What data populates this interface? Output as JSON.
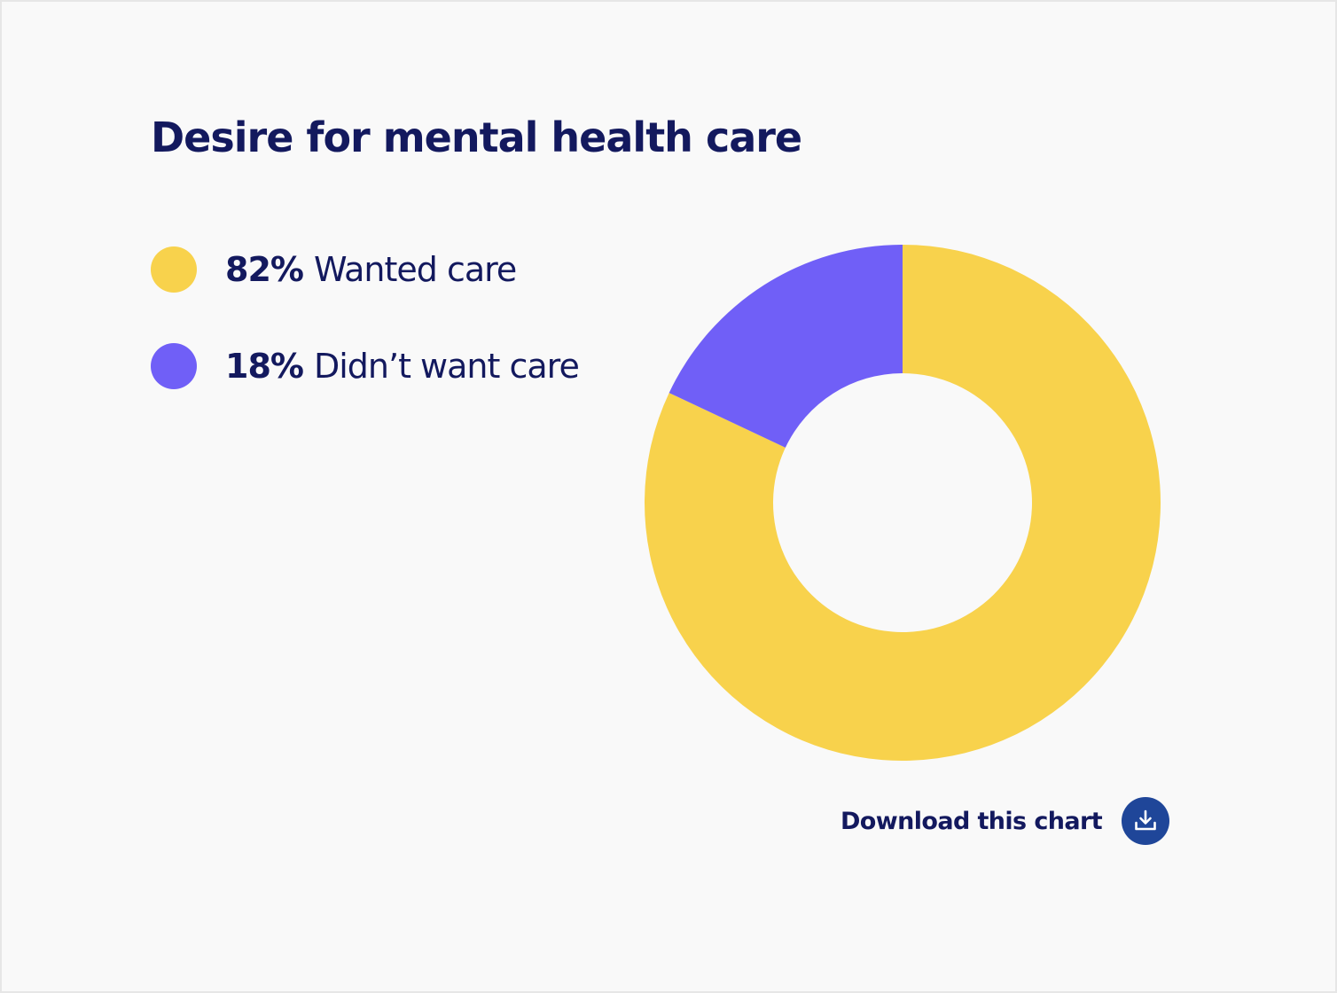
{
  "colors": {
    "background": "#f9f9f9",
    "text": "#13195e",
    "wanted": "#f8d24c",
    "didnt_want": "#705ff7",
    "download_button": "#1f4699"
  },
  "legend": [
    {
      "value": "82%",
      "label": "Wanted care"
    },
    {
      "value": "18%",
      "label": "Didn’t want care"
    }
  ],
  "download": {
    "label": "Download this chart",
    "icon": "download-icon"
  },
  "chart_data": {
    "type": "pie",
    "title": "Desire for mental health care",
    "donut": true,
    "start": "top",
    "direction": "clockwise",
    "legend_position": "top-left",
    "slices": [
      {
        "label": "Wanted care",
        "value": 82,
        "color": "#f8d24c"
      },
      {
        "label": "Didn’t want care",
        "value": 18,
        "color": "#705ff7"
      }
    ]
  }
}
